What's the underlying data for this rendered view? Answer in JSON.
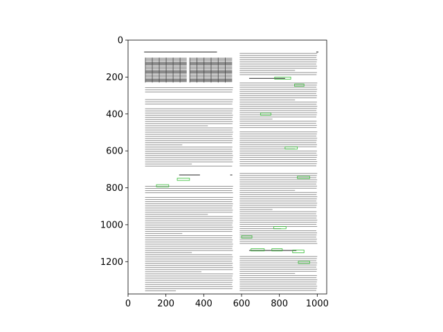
{
  "chart_data": {
    "type": "image",
    "title": "",
    "xlabel": "",
    "ylabel": "",
    "xlim": [
      0,
      1050
    ],
    "ylim": [
      1375,
      0
    ],
    "x_ticks": [
      0,
      200,
      400,
      600,
      800,
      1000
    ],
    "y_ticks": [
      0,
      200,
      400,
      600,
      800,
      1000,
      1200
    ],
    "grid": false,
    "legend": "none",
    "image_content": "scanned two-column document page with small green highlight boxes"
  },
  "colors": {
    "axis": "#000000",
    "background": "#ffffff",
    "highlight": "#33bb33"
  }
}
